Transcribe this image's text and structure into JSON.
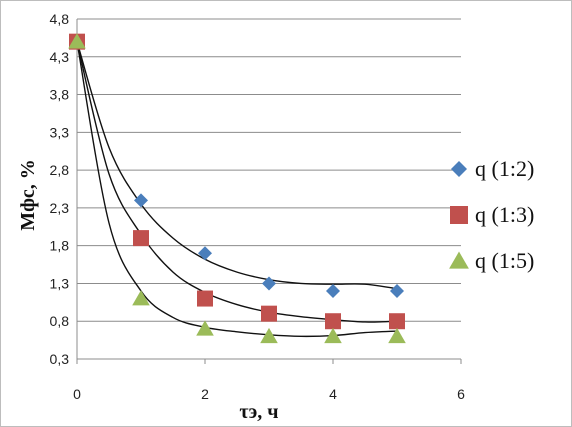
{
  "chart_data": {
    "type": "scatter",
    "xlabel": "τэ, ч",
    "ylabel": "Мфс, %",
    "xlim": [
      0,
      6
    ],
    "ylim": [
      0.3,
      4.8
    ],
    "x_ticks": [
      0,
      2,
      4,
      6
    ],
    "y_ticks": [
      0.3,
      0.8,
      1.3,
      1.8,
      2.3,
      2.8,
      3.3,
      3.8,
      4.3,
      4.8
    ],
    "grid": true,
    "legend_position": "right",
    "series": [
      {
        "name": "q (1:2)",
        "marker": "diamond",
        "color": "#4a7ebb",
        "x": [
          0,
          1,
          2,
          3,
          4,
          5
        ],
        "y": [
          4.5,
          2.4,
          1.7,
          1.3,
          1.2,
          1.2
        ],
        "trend": [
          [
            0,
            4.5
          ],
          [
            0.5,
            3.1
          ],
          [
            1,
            2.35
          ],
          [
            1.5,
            1.9
          ],
          [
            2,
            1.62
          ],
          [
            2.5,
            1.45
          ],
          [
            3,
            1.35
          ],
          [
            3.5,
            1.3
          ],
          [
            4,
            1.29
          ],
          [
            4.5,
            1.29
          ],
          [
            5,
            1.23
          ]
        ]
      },
      {
        "name": "q (1:3)",
        "marker": "square",
        "color": "#c0504d",
        "x": [
          0,
          1,
          2,
          3,
          4,
          5
        ],
        "y": [
          4.5,
          1.9,
          1.1,
          0.9,
          0.8,
          0.8
        ],
        "trend": [
          [
            0,
            4.5
          ],
          [
            0.5,
            2.75
          ],
          [
            1,
            1.95
          ],
          [
            1.5,
            1.45
          ],
          [
            2,
            1.18
          ],
          [
            2.5,
            1.02
          ],
          [
            3,
            0.92
          ],
          [
            3.5,
            0.86
          ],
          [
            4,
            0.82
          ],
          [
            4.5,
            0.79
          ],
          [
            5,
            0.8
          ]
        ]
      },
      {
        "name": "q (1:5)",
        "marker": "triangle",
        "color": "#9bbb59",
        "x": [
          0,
          1,
          2,
          3,
          4,
          5
        ],
        "y": [
          4.5,
          1.1,
          0.7,
          0.6,
          0.6,
          0.6
        ],
        "trend": [
          [
            0,
            4.5
          ],
          [
            0.5,
            2.1
          ],
          [
            1,
            1.2
          ],
          [
            1.5,
            0.85
          ],
          [
            2,
            0.72
          ],
          [
            2.5,
            0.66
          ],
          [
            3,
            0.62
          ],
          [
            3.5,
            0.6
          ],
          [
            4,
            0.61
          ],
          [
            4.5,
            0.65
          ],
          [
            5,
            0.67
          ]
        ]
      }
    ]
  }
}
